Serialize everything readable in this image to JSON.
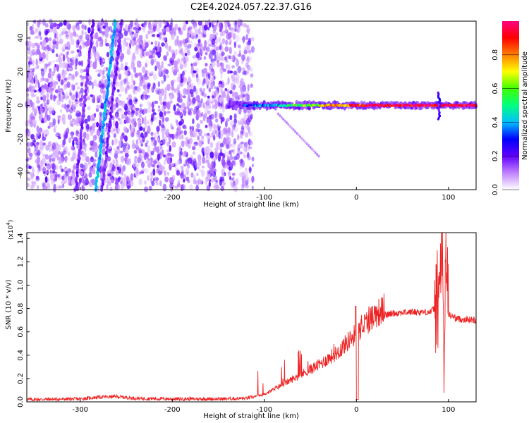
{
  "title": "C2E4.2024.057.22.37.G16",
  "chart_data": [
    {
      "type": "heatmap",
      "xlabel": "Height of straight line (km)",
      "ylabel": "Frequency (Hz)",
      "xlim": [
        -358,
        130
      ],
      "ylim": [
        -50,
        50
      ],
      "x_ticks": [
        -300,
        -200,
        -100,
        0,
        100
      ],
      "y_ticks": [
        -40,
        -20,
        0,
        20,
        40
      ],
      "colorbar": {
        "label": "Normalized spectral amplitude",
        "range": [
          0,
          1
        ],
        "ticks": [
          "0.0",
          "0.2",
          "0.4",
          "0.6",
          "0.8"
        ],
        "tick_values": [
          0.0,
          0.2,
          0.4,
          0.6,
          0.8
        ],
        "colors": [
          "#ffffff",
          "#c080ff",
          "#6000ff",
          "#0000ff",
          "#00c0ff",
          "#00ff80",
          "#40ff00",
          "#ffff00",
          "#ff8000",
          "#ff0000",
          "#ff0080"
        ]
      },
      "features": {
        "noise_region_x": [
          -358,
          -120
        ],
        "carrier_start_x": -140,
        "carrier_freq_hz": 0,
        "carrier_spike_x": 90,
        "diagonal_streaks": [
          {
            "x_top": -286,
            "x_bottom": -305
          },
          {
            "x_top": -262,
            "x_bottom": -283
          },
          {
            "x_top": -255,
            "x_bottom": -276
          }
        ]
      }
    },
    {
      "type": "line",
      "xlabel": "Height of straight line (km)",
      "ylabel": "SNR (10 * v/v)",
      "y_multiplier": "(x10",
      "y_multiplier_exp": "4",
      "y_multiplier_close": ")",
      "xlim": [
        -358,
        130
      ],
      "ylim": [
        0,
        1.45
      ],
      "x_ticks": [
        -300,
        -200,
        -100,
        0,
        100
      ],
      "y_ticks": [
        0.0,
        0.2,
        0.4,
        0.6,
        0.8,
        1.0,
        1.2,
        1.4
      ],
      "y_tick_labels": [
        "0.0",
        "0.2",
        "0.4",
        "0.6",
        "0.8",
        "1.0",
        "1.2",
        "1.4"
      ],
      "color": "#ee2222",
      "series": [
        {
          "x": [
            -358,
            -300,
            -280,
            -260,
            -240,
            -200,
            -150,
            -120,
            -100,
            -80,
            -60,
            -40,
            -20,
            -10,
            0,
            10,
            20,
            30,
            40,
            60,
            80,
            85,
            90,
            93,
            95,
            97,
            100,
            110,
            130
          ],
          "y": [
            0.02,
            0.025,
            0.04,
            0.045,
            0.03,
            0.025,
            0.025,
            0.03,
            0.06,
            0.14,
            0.22,
            0.3,
            0.4,
            0.48,
            0.55,
            0.63,
            0.7,
            0.74,
            0.76,
            0.77,
            0.77,
            0.8,
            0.9,
            1.4,
            0.05,
            1.4,
            0.75,
            0.71,
            0.7
          ]
        }
      ]
    }
  ]
}
